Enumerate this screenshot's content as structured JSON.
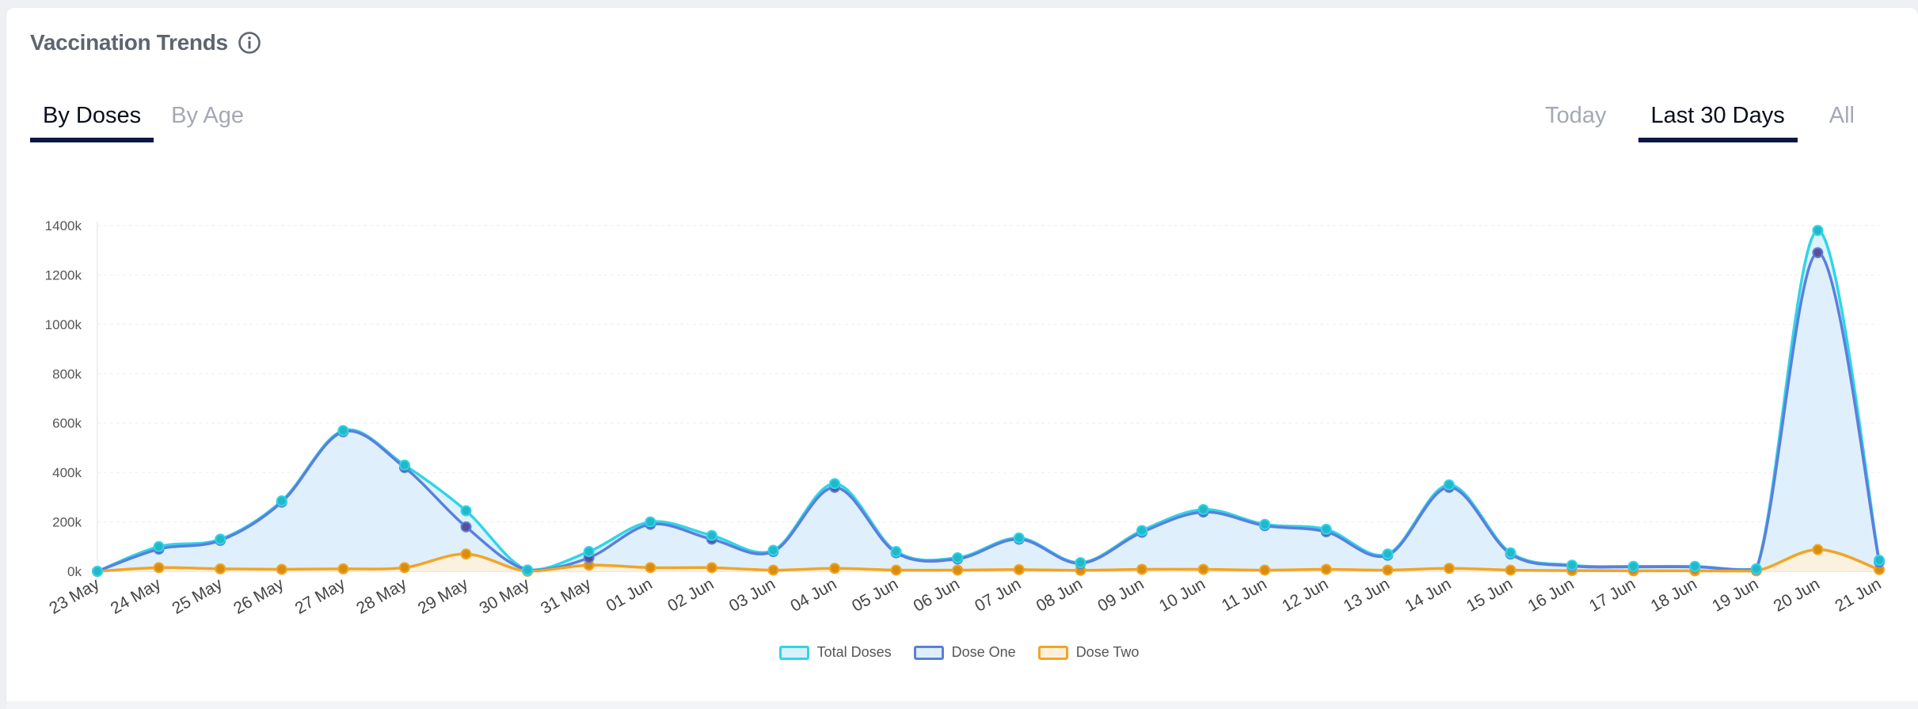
{
  "header": {
    "title": "Vaccination Trends",
    "info_icon": "info-circle-icon"
  },
  "tabs_left": [
    {
      "label": "By Doses",
      "active": true
    },
    {
      "label": "By Age",
      "active": false
    }
  ],
  "tabs_right": [
    {
      "label": "Today",
      "active": false
    },
    {
      "label": "Last 30 Days",
      "active": true
    },
    {
      "label": "All",
      "active": false
    }
  ],
  "chart_data": {
    "type": "area",
    "x": [
      "23 May",
      "24 May",
      "25 May",
      "26 May",
      "27 May",
      "28 May",
      "29 May",
      "30 May",
      "31 May",
      "01 Jun",
      "02 Jun",
      "03 Jun",
      "04 Jun",
      "05 Jun",
      "06 Jun",
      "07 Jun",
      "08 Jun",
      "09 Jun",
      "10 Jun",
      "11 Jun",
      "12 Jun",
      "13 Jun",
      "14 Jun",
      "15 Jun",
      "16 Jun",
      "17 Jun",
      "18 Jun",
      "19 Jun",
      "20 Jun",
      "21 Jun"
    ],
    "ylim": [
      0,
      1400000
    ],
    "yticks": [
      0,
      200000,
      400000,
      600000,
      800000,
      1000000,
      1200000,
      1400000
    ],
    "ytick_labels": [
      "0k",
      "200k",
      "400k",
      "600k",
      "800k",
      "1000k",
      "1200k",
      "1400k"
    ],
    "grid": true,
    "legend_position": "bottom-center",
    "series": [
      {
        "name": "Total Doses",
        "color": "#2fd5e8",
        "fill": "#d7f1fb",
        "values": [
          0,
          100000,
          130000,
          285000,
          570000,
          430000,
          245000,
          5000,
          80000,
          200000,
          145000,
          85000,
          355000,
          80000,
          55000,
          135000,
          35000,
          165000,
          250000,
          190000,
          170000,
          70000,
          350000,
          75000,
          25000,
          20000,
          20000,
          10000,
          1380000,
          45000
        ]
      },
      {
        "name": "Dose One",
        "color": "#5b7fdc",
        "fill": "#dfeefb",
        "values": [
          0,
          90000,
          125000,
          280000,
          565000,
          420000,
          180000,
          5000,
          55000,
          190000,
          130000,
          80000,
          340000,
          75000,
          50000,
          130000,
          32000,
          158000,
          240000,
          185000,
          160000,
          65000,
          340000,
          70000,
          22000,
          18000,
          18000,
          8000,
          1290000,
          38000
        ]
      },
      {
        "name": "Dose Two",
        "color": "#f3a425",
        "fill": "#fdf1dc",
        "values": [
          0,
          15000,
          10000,
          8000,
          10000,
          15000,
          70000,
          0,
          25000,
          15000,
          15000,
          5000,
          12000,
          5000,
          5000,
          7000,
          4000,
          8000,
          8000,
          5000,
          8000,
          5000,
          12000,
          5000,
          3000,
          2000,
          2000,
          2000,
          88000,
          7000
        ]
      }
    ]
  }
}
